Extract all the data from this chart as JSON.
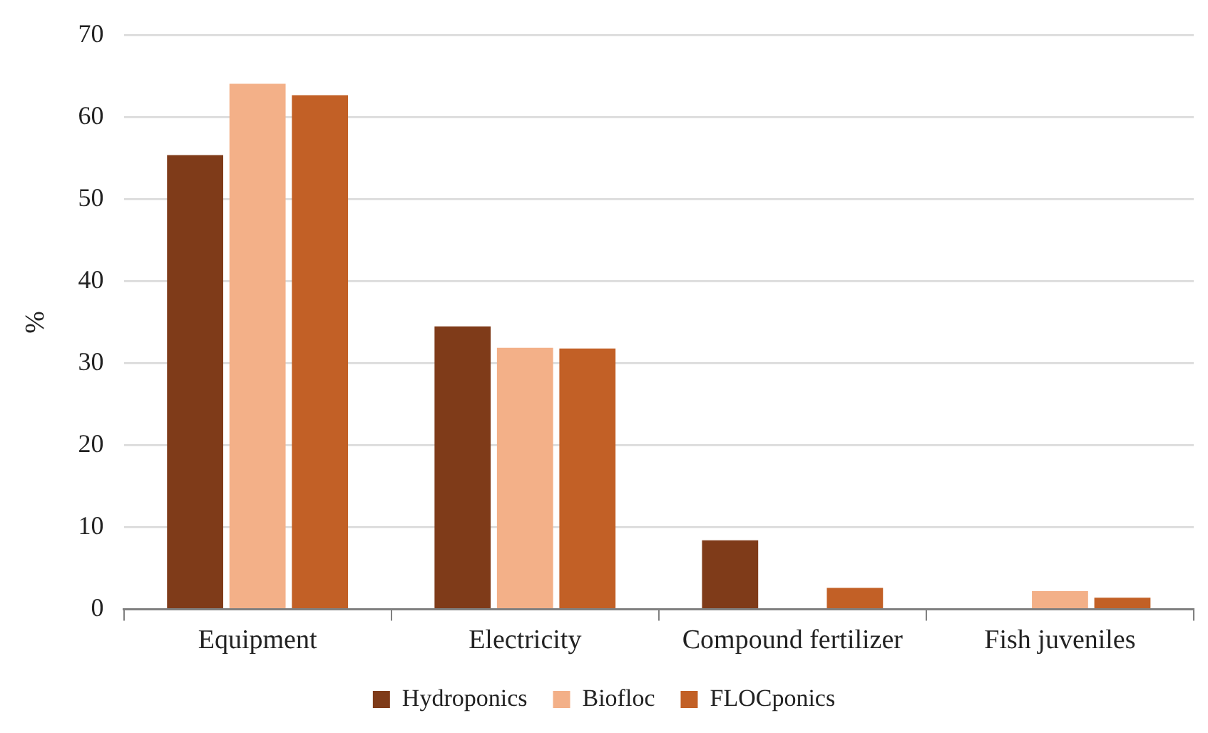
{
  "chart_data": {
    "type": "bar",
    "ylabel": "%",
    "categories": [
      "Equipment",
      "Electricity",
      "Compound fertilizer",
      "Fish juveniles"
    ],
    "series": [
      {
        "name": "Hydroponics",
        "color": "#7f3b19",
        "values": [
          55.4,
          34.5,
          8.4,
          null
        ]
      },
      {
        "name": "Biofloc",
        "color": "#f3b088",
        "values": [
          64.1,
          31.9,
          null,
          2.2
        ]
      },
      {
        "name": "FLOCponics",
        "color": "#c26026",
        "values": [
          62.7,
          31.8,
          2.6,
          1.4
        ]
      }
    ],
    "ylim": [
      0,
      70
    ],
    "yticks": [
      0,
      10,
      20,
      30,
      40,
      50,
      60,
      70
    ],
    "grid": "y",
    "legend": "bottom"
  }
}
